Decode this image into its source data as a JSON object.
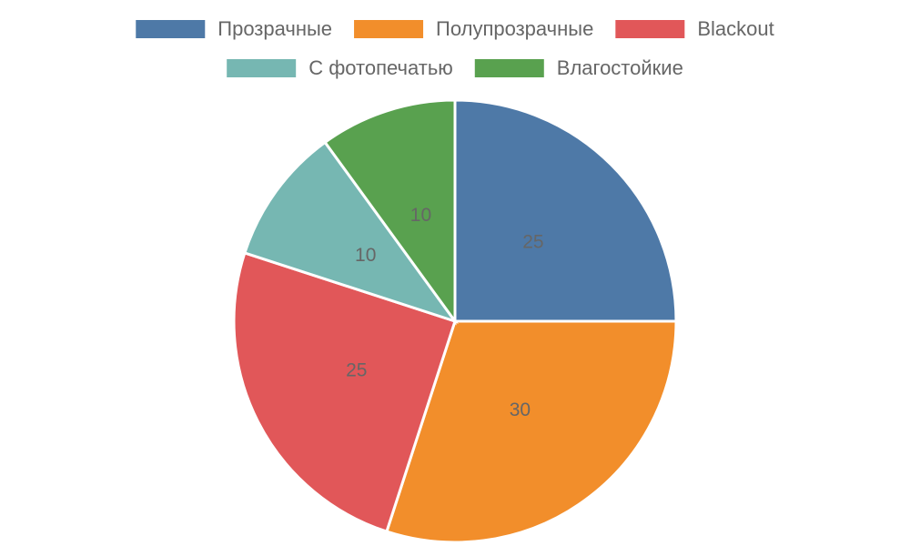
{
  "chart_data": {
    "type": "pie",
    "categories": [
      "Прозрачные",
      "Полупрозрачные",
      "Blackout",
      "С фотопечатью",
      "Влагостойкие"
    ],
    "values": [
      25,
      30,
      25,
      10,
      10
    ],
    "colors": [
      "#4e79a7",
      "#f28e2b",
      "#e15759",
      "#76b7b2",
      "#59a14f"
    ],
    "legend": "top"
  }
}
